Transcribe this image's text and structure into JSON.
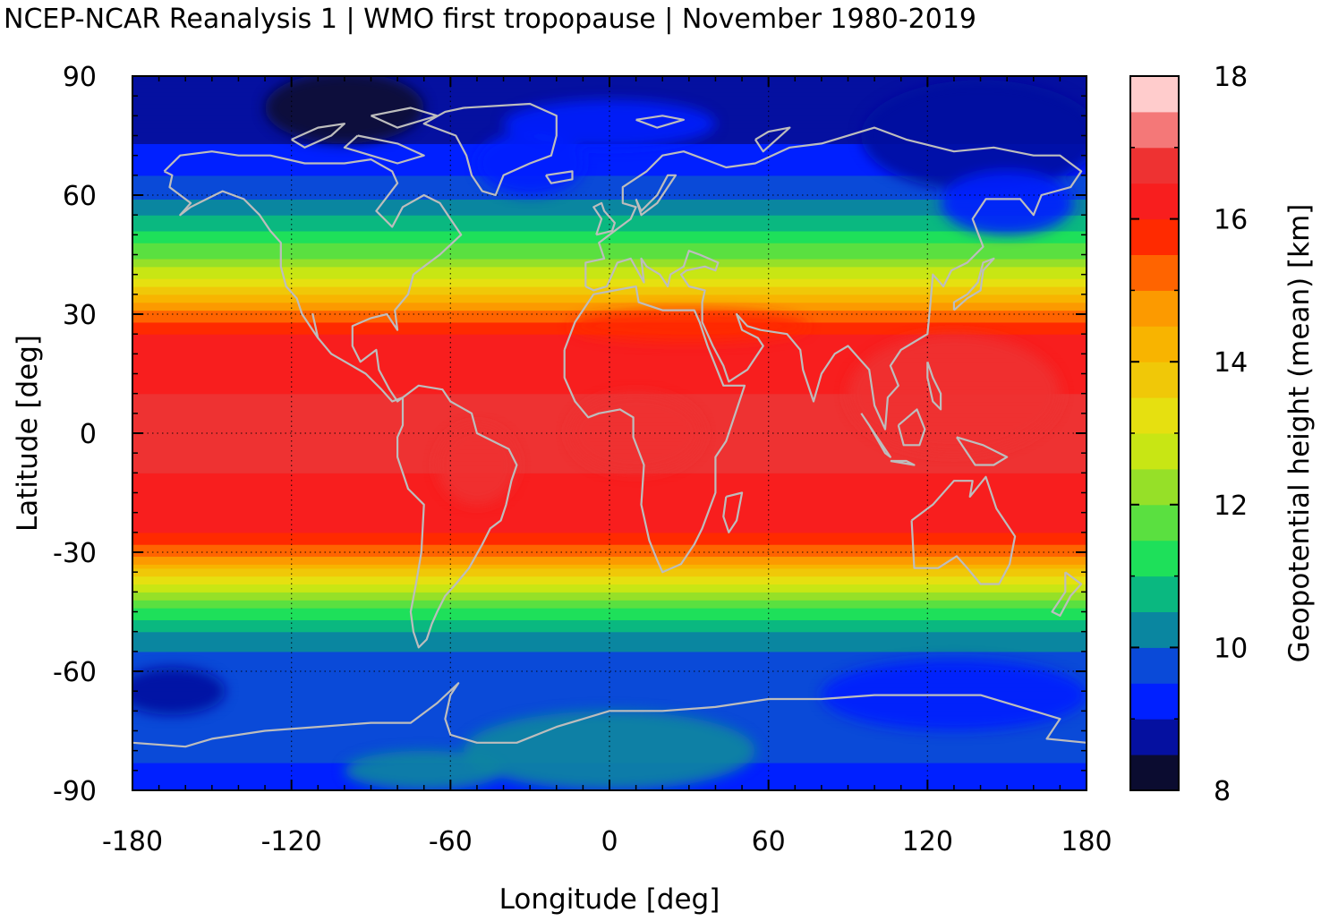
{
  "chart_data": {
    "type": "heatmap",
    "title": "NCEP-NCAR Reanalysis 1 | WMO first tropopause | November 1980-2019",
    "xlabel": "Longitude [deg]",
    "ylabel": "Latitude [deg]",
    "colorbar_label": "Geopotential height (mean) [km]",
    "xlim": [
      -180,
      180
    ],
    "ylim": [
      -90,
      90
    ],
    "xticks": [
      -180,
      -120,
      -60,
      0,
      60,
      120,
      180
    ],
    "yticks": [
      90,
      60,
      30,
      0,
      -30,
      -60,
      -90
    ],
    "colorbar_range": [
      8,
      18
    ],
    "colorbar_ticks": [
      18,
      16,
      14,
      12,
      10,
      8
    ],
    "grid": true,
    "coastlines_color": "#bdbdbd",
    "color_levels": [
      {
        "from": 8.0,
        "to": 8.5,
        "color": "#0b0c30"
      },
      {
        "from": 8.5,
        "to": 9.0,
        "color": "#0510a0"
      },
      {
        "from": 9.0,
        "to": 9.5,
        "color": "#0020ff"
      },
      {
        "from": 9.5,
        "to": 10.0,
        "color": "#0a4ad8"
      },
      {
        "from": 10.0,
        "to": 10.5,
        "color": "#0a86a0"
      },
      {
        "from": 10.5,
        "to": 11.0,
        "color": "#0ab880"
      },
      {
        "from": 11.0,
        "to": 11.5,
        "color": "#1ee05a"
      },
      {
        "from": 11.5,
        "to": 12.0,
        "color": "#5ae040"
      },
      {
        "from": 12.0,
        "to": 12.5,
        "color": "#96e028"
      },
      {
        "from": 12.5,
        "to": 13.0,
        "color": "#c8e614"
      },
      {
        "from": 13.0,
        "to": 13.5,
        "color": "#e6e010"
      },
      {
        "from": 13.5,
        "to": 14.0,
        "color": "#f0c808"
      },
      {
        "from": 14.0,
        "to": 14.5,
        "color": "#f8b400"
      },
      {
        "from": 14.5,
        "to": 15.0,
        "color": "#fc9a00"
      },
      {
        "from": 15.0,
        "to": 15.5,
        "color": "#ff6400"
      },
      {
        "from": 15.5,
        "to": 16.0,
        "color": "#ff2a00"
      },
      {
        "from": 16.0,
        "to": 16.5,
        "color": "#f81e1e"
      },
      {
        "from": 16.5,
        "to": 17.0,
        "color": "#ee3232"
      },
      {
        "from": 17.0,
        "to": 17.5,
        "color": "#f47878"
      },
      {
        "from": 17.5,
        "to": 18.0,
        "color": "#ffcccc"
      }
    ],
    "zonal_mean_profile": {
      "latitude": [
        -90,
        -85,
        -80,
        -75,
        -70,
        -65,
        -60,
        -55,
        -50,
        -45,
        -40,
        -35,
        -30,
        -25,
        -20,
        -15,
        -10,
        -5,
        0,
        5,
        10,
        15,
        20,
        25,
        30,
        35,
        40,
        45,
        50,
        55,
        60,
        65,
        70,
        75,
        80,
        85,
        90
      ],
      "height_km": [
        9.3,
        9.4,
        9.6,
        9.7,
        9.6,
        9.5,
        9.6,
        10.0,
        10.5,
        11.3,
        12.4,
        13.8,
        15.2,
        16.0,
        16.3,
        16.4,
        16.5,
        16.5,
        16.5,
        16.5,
        16.5,
        16.4,
        16.2,
        16.0,
        15.2,
        14.0,
        12.8,
        11.9,
        11.2,
        10.5,
        9.9,
        9.5,
        9.2,
        8.9,
        8.7,
        8.6,
        8.6
      ]
    }
  }
}
